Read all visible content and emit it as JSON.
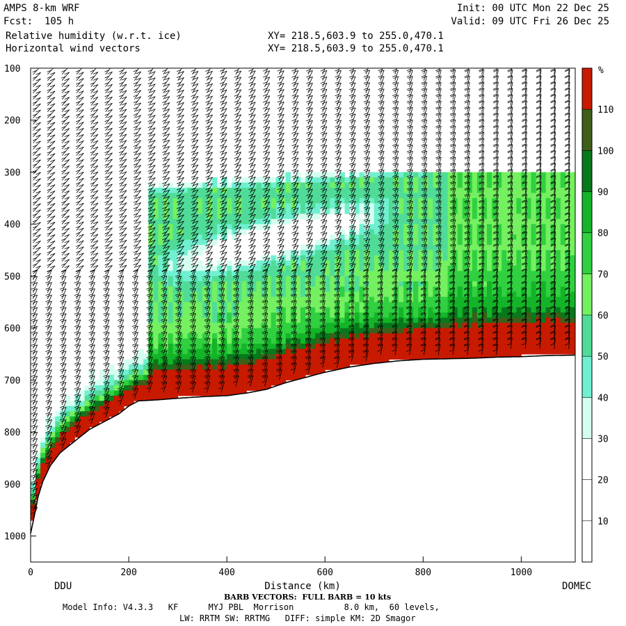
{
  "header": {
    "model": "AMPS 8-km WRF",
    "fcst": "Fcst:  105 h",
    "field1": "Relative humidity (w.r.t. ice)",
    "field2": "Horizontal wind vectors",
    "init": "Init: 00 UTC Mon 22 Dec 25",
    "valid": "Valid: 09 UTC Fri 26 Dec 25",
    "xy1": "XY= 218.5,603.9 to 255.0,470.1",
    "xy2": "XY= 218.5,603.9 to 255.0,470.1"
  },
  "footer": {
    "barb_note": "BARB VECTORS:  FULL BARB = 10 kts",
    "model_info": "Model Info: V4.3.3   KF      MYJ PBL  Morrison          8.0 km,  60 levels,",
    "physics": "LW: RRTM SW: RRTMG   DIFF: simple KM: 2D Smagor"
  },
  "chart_data": {
    "type": "heatmap",
    "title": "Relative humidity (w.r.t. ice)",
    "xlabel": "Distance (km)",
    "ylabel": "",
    "xlim": [
      0,
      1110
    ],
    "ylim": [
      1050,
      100
    ],
    "x_ticks": [
      0,
      200,
      400,
      600,
      800,
      1000
    ],
    "y_ticks": [
      100,
      200,
      300,
      400,
      500,
      600,
      700,
      800,
      900,
      1000
    ],
    "endpoints": {
      "left": "DDU",
      "right": "DOMEC"
    },
    "colorbar": {
      "unit": "%",
      "levels": [
        10,
        20,
        30,
        40,
        50,
        60,
        70,
        80,
        90,
        100,
        110
      ],
      "colors": [
        "#ffffff",
        "#ffffff",
        "#ffffff",
        "#d4fff0",
        "#70f0d0",
        "#50dc98",
        "#74f060",
        "#30d040",
        "#14b428",
        "#08781c",
        "#3e5e1a",
        "#c81a00"
      ]
    },
    "terrain_pressure": {
      "x": [
        0,
        8,
        15,
        25,
        40,
        60,
        80,
        100,
        120,
        150,
        180,
        200,
        220,
        260,
        300,
        350,
        400,
        440,
        480,
        520,
        560,
        600,
        650,
        700,
        750,
        800,
        850,
        900,
        950,
        1000,
        1050,
        1110
      ],
      "p": [
        995,
        960,
        925,
        895,
        865,
        840,
        825,
        810,
        795,
        780,
        765,
        750,
        740,
        738,
        735,
        732,
        730,
        725,
        718,
        705,
        695,
        685,
        675,
        668,
        663,
        660,
        659,
        658,
        656,
        655,
        653,
        652
      ]
    }
  }
}
